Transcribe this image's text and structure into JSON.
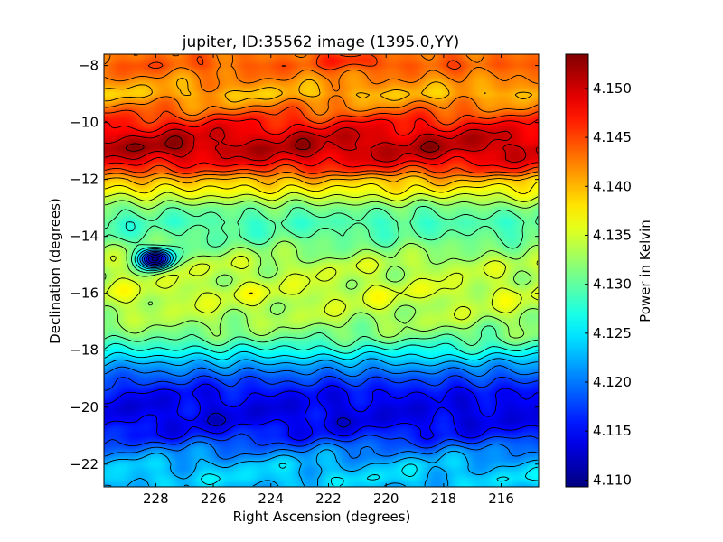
{
  "chart_data": {
    "type": "heatmap",
    "title": "jupiter, ID:35562 image (1395.0,YY)",
    "xlabel": "Right Ascension (degrees)",
    "ylabel": "Declination (degrees)",
    "colorbar_label": "Power in Kelvin",
    "xlim": [
      229.8,
      214.7
    ],
    "ylim": [
      -22.8,
      -7.6
    ],
    "x_ticks": [
      228,
      226,
      224,
      222,
      220,
      218,
      216
    ],
    "x_tick_labels": [
      "228",
      "226",
      "224",
      "222",
      "220",
      "218",
      "216"
    ],
    "y_ticks": [
      -8,
      -10,
      -12,
      -14,
      -16,
      -18,
      -20,
      -22
    ],
    "y_tick_labels": [
      "−8",
      "−10",
      "−12",
      "−14",
      "−16",
      "−18",
      "−20",
      "−22"
    ],
    "colorbar_range": [
      4.1093,
      4.1535
    ],
    "colorbar_ticks": [
      4.11,
      4.115,
      4.12,
      4.125,
      4.13,
      4.135,
      4.14,
      4.145,
      4.15
    ],
    "colorbar_tick_labels": [
      "4.110",
      "4.115",
      "4.120",
      "4.125",
      "4.130",
      "4.135",
      "4.140",
      "4.145",
      "4.150"
    ],
    "colormap": "jet",
    "contour_lines": true,
    "declination_profile": {
      "dec": [
        -7.6,
        -8.0,
        -8.5,
        -9.0,
        -9.5,
        -10.0,
        -10.5,
        -10.9,
        -11.3,
        -11.7,
        -12.0,
        -12.5,
        -13.0,
        -13.5,
        -14.0,
        -14.5,
        -15.0,
        -15.5,
        -16.0,
        -16.5,
        -17.0,
        -17.5,
        -18.0,
        -18.5,
        -19.0,
        -19.5,
        -20.0,
        -20.5,
        -21.0,
        -21.5,
        -22.0,
        -22.5,
        -22.8
      ],
      "power": [
        4.143,
        4.144,
        4.142,
        4.14,
        4.143,
        4.147,
        4.15,
        4.151,
        4.149,
        4.145,
        4.14,
        4.136,
        4.131,
        4.129,
        4.13,
        4.132,
        4.134,
        4.134,
        4.135,
        4.134,
        4.133,
        4.131,
        4.127,
        4.122,
        4.118,
        4.115,
        4.114,
        4.114,
        4.116,
        4.12,
        4.123,
        4.124,
        4.123
      ]
    },
    "features": [
      {
        "ra": 228.0,
        "dec": -14.8,
        "power": 4.1095,
        "description": "cold spot"
      },
      {
        "ra": 228.0,
        "dec": -10.8,
        "power": 4.152,
        "description": "hot spot"
      },
      {
        "ra": 219.5,
        "dec": -10.9,
        "power": 4.151,
        "description": "hot spot"
      },
      {
        "ra": 221.3,
        "dec": -7.8,
        "power": 4.147,
        "description": "hot spot"
      }
    ]
  }
}
